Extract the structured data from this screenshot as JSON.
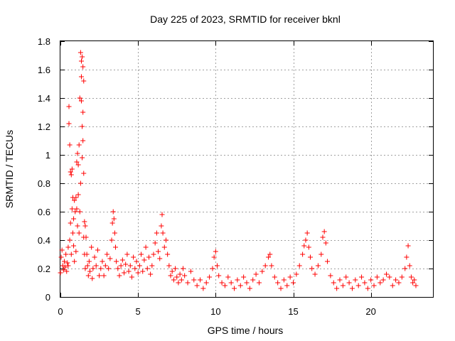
{
  "chart_data": {
    "type": "scatter",
    "title": "Day 225 of 2023, SRMTID for receiver bknl",
    "xlabel": "GPS time / hours",
    "ylabel": "SRMTID / TECUs",
    "xlim": [
      0,
      24
    ],
    "ylim": [
      0,
      1.8
    ],
    "xticks": [
      0,
      5,
      10,
      15,
      20
    ],
    "yticks": [
      0,
      0.2,
      0.4,
      0.6,
      0.8,
      1,
      1.2,
      1.4,
      1.6,
      1.8
    ],
    "xtick_labels": [
      "0",
      "5",
      "10",
      "15",
      "20"
    ],
    "ytick_labels": [
      "0",
      "0.2",
      "0.4",
      "0.6",
      "0.8",
      "1",
      "1.2",
      "1.4",
      "1.6",
      "1.8"
    ],
    "grid": true,
    "marker": "+",
    "color": "#ff0000",
    "series": [
      {
        "name": "SRMTID",
        "points": [
          [
            0.0,
            0.17
          ],
          [
            0.05,
            0.28
          ],
          [
            0.1,
            0.33
          ],
          [
            0.15,
            0.22
          ],
          [
            0.2,
            0.19
          ],
          [
            0.25,
            0.25
          ],
          [
            0.3,
            0.21
          ],
          [
            0.35,
            0.3
          ],
          [
            0.4,
            0.18
          ],
          [
            0.45,
            0.24
          ],
          [
            0.5,
            0.35
          ],
          [
            0.5,
            0.22
          ],
          [
            0.55,
            1.34
          ],
          [
            0.55,
            1.22
          ],
          [
            0.6,
            1.07
          ],
          [
            0.6,
            0.4
          ],
          [
            0.65,
            0.88
          ],
          [
            0.65,
            0.52
          ],
          [
            0.7,
            0.86
          ],
          [
            0.7,
            0.3
          ],
          [
            0.75,
            0.9
          ],
          [
            0.75,
            0.62
          ],
          [
            0.8,
            0.7
          ],
          [
            0.8,
            0.45
          ],
          [
            0.85,
            0.36
          ],
          [
            0.85,
            0.55
          ],
          [
            0.9,
            0.68
          ],
          [
            0.9,
            0.25
          ],
          [
            0.95,
            0.6
          ],
          [
            1.0,
            0.7
          ],
          [
            1.0,
            0.32
          ],
          [
            1.05,
            0.62
          ],
          [
            1.05,
            0.95
          ],
          [
            1.1,
            1.01
          ],
          [
            1.1,
            0.5
          ],
          [
            1.15,
            0.93
          ],
          [
            1.15,
            0.72
          ],
          [
            1.2,
            1.07
          ],
          [
            1.2,
            0.45
          ],
          [
            1.25,
            1.4
          ],
          [
            1.25,
            0.6
          ],
          [
            1.3,
            1.72
          ],
          [
            1.3,
            0.8
          ],
          [
            1.35,
            1.66
          ],
          [
            1.35,
            1.55
          ],
          [
            1.35,
            1.38
          ],
          [
            1.4,
            1.69
          ],
          [
            1.4,
            1.2
          ],
          [
            1.4,
            0.98
          ],
          [
            1.45,
            1.62
          ],
          [
            1.45,
            1.3
          ],
          [
            1.45,
            1.1
          ],
          [
            1.5,
            1.52
          ],
          [
            1.5,
            0.87
          ],
          [
            1.5,
            0.42
          ],
          [
            1.55,
            0.53
          ],
          [
            1.55,
            0.3
          ],
          [
            1.6,
            0.5
          ],
          [
            1.6,
            0.2
          ],
          [
            1.65,
            0.42
          ],
          [
            1.7,
            0.3
          ],
          [
            1.75,
            0.22
          ],
          [
            1.8,
            0.15
          ],
          [
            1.85,
            0.25
          ],
          [
            1.9,
            0.18
          ],
          [
            2.0,
            0.35
          ],
          [
            2.05,
            0.13
          ],
          [
            2.1,
            0.2
          ],
          [
            2.2,
            0.28
          ],
          [
            2.3,
            0.22
          ],
          [
            2.4,
            0.33
          ],
          [
            2.5,
            0.15
          ],
          [
            2.6,
            0.2
          ],
          [
            2.7,
            0.25
          ],
          [
            2.8,
            0.15
          ],
          [
            2.9,
            0.22
          ],
          [
            3.0,
            0.3
          ],
          [
            3.1,
            0.2
          ],
          [
            3.2,
            0.27
          ],
          [
            3.3,
            0.4
          ],
          [
            3.35,
            0.52
          ],
          [
            3.4,
            0.6
          ],
          [
            3.45,
            0.55
          ],
          [
            3.5,
            0.45
          ],
          [
            3.55,
            0.35
          ],
          [
            3.6,
            0.25
          ],
          [
            3.7,
            0.2
          ],
          [
            3.8,
            0.15
          ],
          [
            3.9,
            0.22
          ],
          [
            4.0,
            0.26
          ],
          [
            4.1,
            0.17
          ],
          [
            4.2,
            0.23
          ],
          [
            4.3,
            0.3
          ],
          [
            4.4,
            0.18
          ],
          [
            4.5,
            0.22
          ],
          [
            4.6,
            0.14
          ],
          [
            4.7,
            0.28
          ],
          [
            4.8,
            0.2
          ],
          [
            4.9,
            0.25
          ],
          [
            5.0,
            0.17
          ],
          [
            5.1,
            0.22
          ],
          [
            5.2,
            0.3
          ],
          [
            5.3,
            0.18
          ],
          [
            5.4,
            0.26
          ],
          [
            5.5,
            0.35
          ],
          [
            5.6,
            0.2
          ],
          [
            5.7,
            0.28
          ],
          [
            5.8,
            0.16
          ],
          [
            5.9,
            0.22
          ],
          [
            6.0,
            0.3
          ],
          [
            6.1,
            0.38
          ],
          [
            6.2,
            0.45
          ],
          [
            6.3,
            0.32
          ],
          [
            6.4,
            0.27
          ],
          [
            6.5,
            0.5
          ],
          [
            6.55,
            0.58
          ],
          [
            6.6,
            0.45
          ],
          [
            6.7,
            0.35
          ],
          [
            6.8,
            0.4
          ],
          [
            6.9,
            0.3
          ],
          [
            7.0,
            0.22
          ],
          [
            7.1,
            0.15
          ],
          [
            7.2,
            0.18
          ],
          [
            7.3,
            0.12
          ],
          [
            7.4,
            0.2
          ],
          [
            7.5,
            0.14
          ],
          [
            7.6,
            0.1
          ],
          [
            7.7,
            0.16
          ],
          [
            7.8,
            0.12
          ],
          [
            7.9,
            0.2
          ],
          [
            8.0,
            0.15
          ],
          [
            8.2,
            0.1
          ],
          [
            8.4,
            0.18
          ],
          [
            8.6,
            0.12
          ],
          [
            8.8,
            0.08
          ],
          [
            9.0,
            0.12
          ],
          [
            9.2,
            0.06
          ],
          [
            9.4,
            0.1
          ],
          [
            9.6,
            0.14
          ],
          [
            9.8,
            0.2
          ],
          [
            9.9,
            0.28
          ],
          [
            10.0,
            0.32
          ],
          [
            10.1,
            0.22
          ],
          [
            10.2,
            0.15
          ],
          [
            10.4,
            0.1
          ],
          [
            10.6,
            0.08
          ],
          [
            10.8,
            0.14
          ],
          [
            11.0,
            0.1
          ],
          [
            11.2,
            0.06
          ],
          [
            11.4,
            0.12
          ],
          [
            11.6,
            0.08
          ],
          [
            11.8,
            0.14
          ],
          [
            12.0,
            0.1
          ],
          [
            12.2,
            0.06
          ],
          [
            12.4,
            0.12
          ],
          [
            12.6,
            0.16
          ],
          [
            12.8,
            0.1
          ],
          [
            13.0,
            0.18
          ],
          [
            13.2,
            0.22
          ],
          [
            13.4,
            0.28
          ],
          [
            13.5,
            0.3
          ],
          [
            13.6,
            0.22
          ],
          [
            13.8,
            0.14
          ],
          [
            14.0,
            0.1
          ],
          [
            14.2,
            0.06
          ],
          [
            14.4,
            0.12
          ],
          [
            14.6,
            0.08
          ],
          [
            14.8,
            0.14
          ],
          [
            15.0,
            0.1
          ],
          [
            15.2,
            0.16
          ],
          [
            15.4,
            0.22
          ],
          [
            15.6,
            0.3
          ],
          [
            15.7,
            0.36
          ],
          [
            15.8,
            0.4
          ],
          [
            15.9,
            0.45
          ],
          [
            16.0,
            0.35
          ],
          [
            16.1,
            0.28
          ],
          [
            16.2,
            0.2
          ],
          [
            16.4,
            0.16
          ],
          [
            16.6,
            0.22
          ],
          [
            16.8,
            0.3
          ],
          [
            16.9,
            0.42
          ],
          [
            17.0,
            0.46
          ],
          [
            17.1,
            0.38
          ],
          [
            17.2,
            0.25
          ],
          [
            17.4,
            0.15
          ],
          [
            17.6,
            0.1
          ],
          [
            17.8,
            0.06
          ],
          [
            18.0,
            0.12
          ],
          [
            18.2,
            0.08
          ],
          [
            18.4,
            0.14
          ],
          [
            18.6,
            0.1
          ],
          [
            18.8,
            0.06
          ],
          [
            19.0,
            0.12
          ],
          [
            19.2,
            0.08
          ],
          [
            19.4,
            0.14
          ],
          [
            19.6,
            0.1
          ],
          [
            19.8,
            0.06
          ],
          [
            20.0,
            0.12
          ],
          [
            20.2,
            0.08
          ],
          [
            20.4,
            0.14
          ],
          [
            20.6,
            0.1
          ],
          [
            20.8,
            0.12
          ],
          [
            21.0,
            0.16
          ],
          [
            21.2,
            0.14
          ],
          [
            21.4,
            0.08
          ],
          [
            21.6,
            0.12
          ],
          [
            21.8,
            0.1
          ],
          [
            22.0,
            0.14
          ],
          [
            22.2,
            0.2
          ],
          [
            22.3,
            0.28
          ],
          [
            22.4,
            0.36
          ],
          [
            22.5,
            0.22
          ],
          [
            22.6,
            0.14
          ],
          [
            22.7,
            0.1
          ],
          [
            22.8,
            0.12
          ],
          [
            22.9,
            0.08
          ]
        ]
      }
    ]
  }
}
